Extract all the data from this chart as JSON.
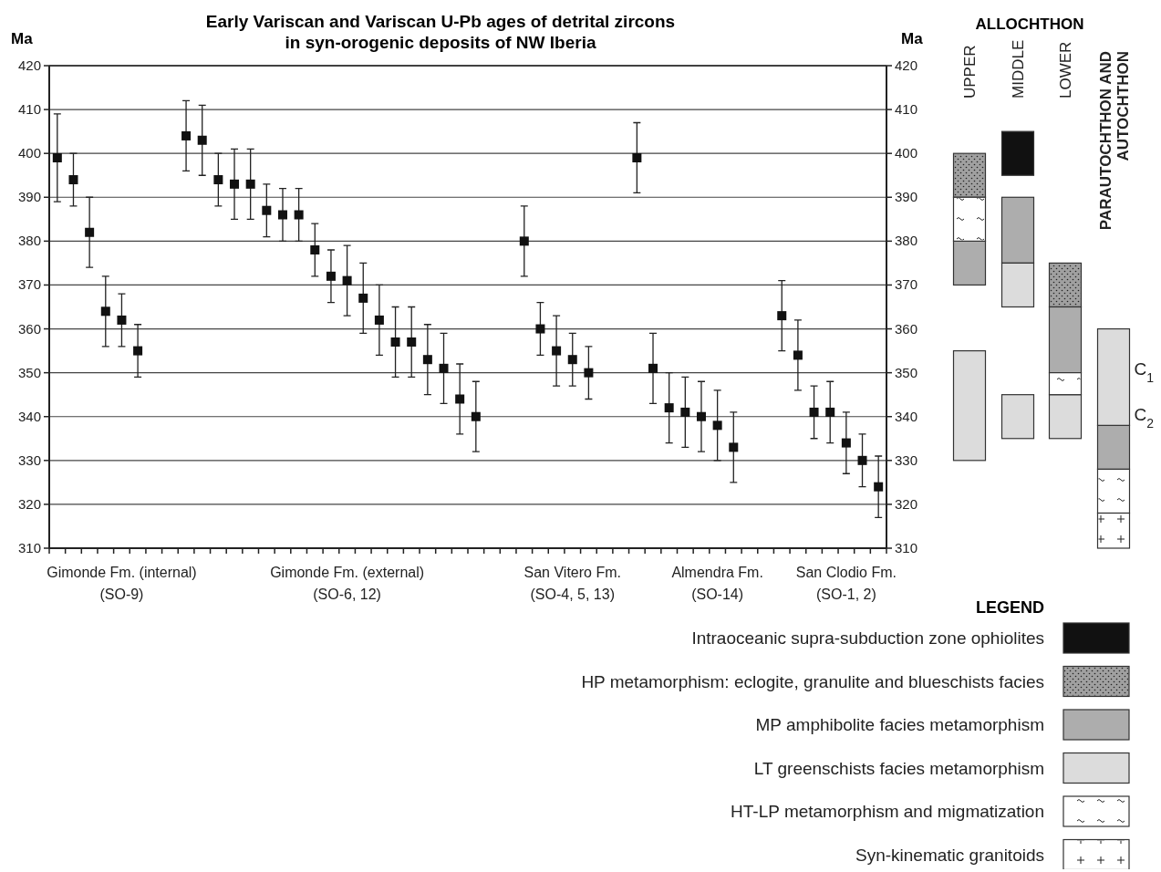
{
  "chart_data": [
    {
      "type": "scatter",
      "title": "Early Variscan and Variscan U-Pb ages of detrital zircons\nin syn-orogenic deposits of NW Iberia",
      "ylabel": "Ma",
      "y2label": "Ma",
      "categories": [
        null,
        null,
        null,
        null,
        "Gimonde Fm. (internal)\n(SO-9)",
        null,
        null,
        null,
        null,
        null,
        null,
        null,
        null,
        null,
        null,
        null,
        null,
        null,
        "Gimonde Fm. (external)\n(SO-6, 12)",
        null,
        null,
        null,
        null,
        null,
        null,
        null,
        null,
        null,
        null,
        null,
        null,
        null,
        "San Vitero Fm.\n(SO-4, 5, 13)",
        null,
        null,
        null,
        null,
        null,
        null,
        null,
        null,
        "Almendra Fm.\n(SO-14)",
        null,
        null,
        null,
        null,
        null,
        null,
        null,
        "San Clodio Fm.\n(SO-1, 2)",
        null,
        null
      ],
      "series": [
        {
          "color": "#111111",
          "values": [
            399,
            394,
            382,
            364,
            362,
            355,
            null,
            null,
            404,
            403,
            394,
            393,
            393,
            387,
            386,
            386,
            378,
            372,
            371,
            367,
            362,
            357,
            357,
            353,
            351,
            344,
            340,
            null,
            null,
            380,
            360,
            355,
            353,
            350,
            null,
            null,
            399,
            351,
            342,
            341,
            340,
            338,
            333,
            null,
            null,
            363,
            354,
            341,
            341,
            334,
            330,
            324
          ],
          "errors": [
            [
              389,
              409
            ],
            [
              388,
              400
            ],
            [
              374,
              390
            ],
            [
              356,
              372
            ],
            [
              356,
              368
            ],
            [
              349,
              361
            ],
            null,
            null,
            [
              396,
              412
            ],
            [
              395,
              411
            ],
            [
              388,
              400
            ],
            [
              385,
              401
            ],
            [
              385,
              401
            ],
            [
              381,
              393
            ],
            [
              380,
              392
            ],
            [
              380,
              392
            ],
            [
              372,
              384
            ],
            [
              366,
              378
            ],
            [
              363,
              379
            ],
            [
              359,
              375
            ],
            [
              354,
              370
            ],
            [
              349,
              365
            ],
            [
              349,
              365
            ],
            [
              345,
              361
            ],
            [
              343,
              359
            ],
            [
              336,
              352
            ],
            [
              332,
              348
            ],
            null,
            null,
            [
              372,
              388
            ],
            [
              354,
              366
            ],
            [
              347,
              363
            ],
            [
              347,
              359
            ],
            [
              344,
              356
            ],
            null,
            null,
            [
              391,
              407
            ],
            [
              343,
              359
            ],
            [
              334,
              350
            ],
            [
              333,
              349
            ],
            [
              332,
              348
            ],
            [
              330,
              346
            ],
            [
              325,
              341
            ],
            null,
            null,
            [
              355,
              371
            ],
            [
              346,
              362
            ],
            [
              335,
              347
            ],
            [
              334,
              348
            ],
            [
              327,
              341
            ],
            [
              324,
              336
            ],
            [
              317,
              331
            ]
          ]
        }
      ],
      "ylim": [
        310,
        420
      ],
      "yticks": [
        310,
        320,
        330,
        340,
        350,
        360,
        370,
        380,
        390,
        400,
        410,
        420
      ],
      "y2lim": [
        310,
        420
      ],
      "y2ticks": [
        310,
        320,
        330,
        340,
        350,
        360,
        370,
        380,
        390,
        400,
        410,
        420
      ],
      "grid": "y",
      "marker": "square"
    },
    {
      "type": "bar",
      "title": "ALLOCHTHON",
      "categories": [
        "UPPER",
        "MIDDLE",
        "LOWER",
        "PARAUTOCHTHON AND AUTOCHTHON"
      ],
      "legend_title": "LEGEND",
      "legend": "bottom",
      "tick_labels": "x",
      "ylim": [
        310,
        420
      ],
      "series": [
        {
          "name": "Intraoceanic supra-subduction zone ophiolites",
          "color": "#111111",
          "base": [
            null,
            395,
            null,
            null
          ],
          "values": [
            null,
            10,
            null,
            null
          ]
        },
        {
          "name": "HP metamorphism: eclogite, granulite and blueschists facies",
          "color": "#a0a0a0",
          "base": [
            390,
            null,
            365,
            null
          ],
          "values": [
            10,
            null,
            10,
            null
          ]
        },
        {
          "name": "MP amphibolite facies metamorphism",
          "color": "#adadad",
          "base": [
            370,
            375,
            350,
            328
          ],
          "values": [
            10,
            15,
            15,
            10
          ]
        },
        {
          "name": "LT greenschists facies metamorphism",
          "color": "#dcdcdc",
          "base": [
            330,
            365,
            335,
            338
          ],
          "values": [
            25,
            10,
            10,
            22
          ]
        },
        {
          "color": "#dcdcdc",
          "base": [
            null,
            335,
            null,
            null
          ],
          "values": [
            null,
            10,
            null,
            null
          ]
        },
        {
          "name": "HT-LP metamorphism and migmatization",
          "color": "#ffffff",
          "base": [
            380,
            null,
            345,
            318
          ],
          "values": [
            10,
            null,
            5,
            10
          ]
        },
        {
          "name": "Syn-kinematic granitoids",
          "color": "#ffffff",
          "base": [
            null,
            null,
            null,
            310
          ],
          "values": [
            null,
            null,
            null,
            8
          ]
        }
      ],
      "annotations": [
        "C$_{1}$",
        "C$_{2}$"
      ]
    }
  ]
}
